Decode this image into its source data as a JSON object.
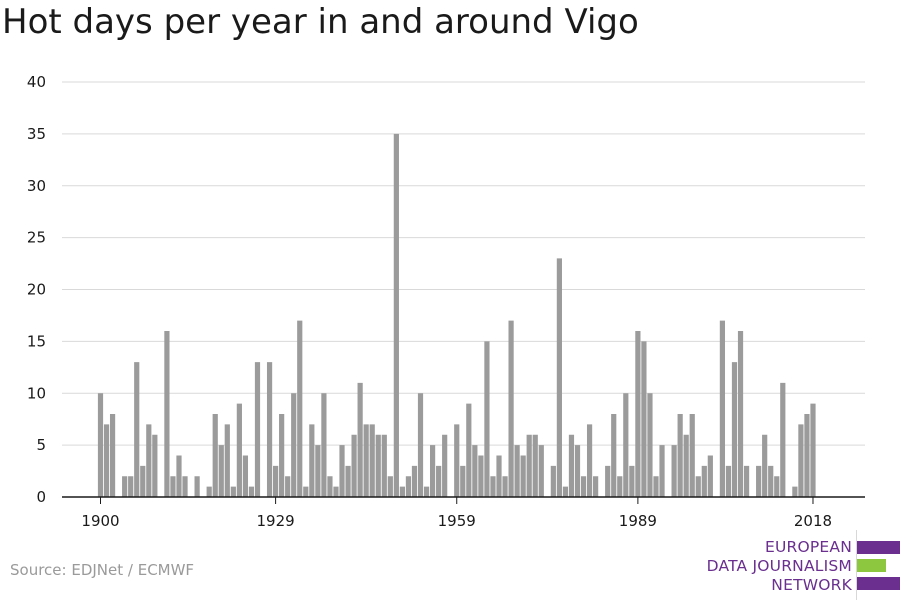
{
  "title": "Hot days per year in and around Vigo",
  "source": "Source: EDJNet / ECMWF",
  "logo": {
    "line1": "EUROPEAN",
    "line2": "DATA JOURNALISM",
    "line3": "NETWORK",
    "colors": {
      "purple": "#6a2f8f",
      "green": "#8dc63f"
    }
  },
  "chart_data": {
    "type": "bar",
    "title": "Hot days per year in and around Vigo",
    "xlabel": "",
    "ylabel": "",
    "ylim": [
      0,
      40
    ],
    "yticks": [
      0,
      5,
      10,
      15,
      20,
      25,
      30,
      35,
      40
    ],
    "xtick_labels": [
      "1900",
      "1929",
      "1959",
      "1989",
      "2018"
    ],
    "grid": true,
    "bar_color": "#9b9b9b",
    "categories": [
      1900,
      1901,
      1902,
      1903,
      1904,
      1905,
      1906,
      1907,
      1908,
      1909,
      1910,
      1911,
      1912,
      1913,
      1914,
      1915,
      1916,
      1917,
      1918,
      1919,
      1920,
      1921,
      1922,
      1923,
      1924,
      1925,
      1926,
      1927,
      1928,
      1929,
      1930,
      1931,
      1932,
      1933,
      1934,
      1935,
      1936,
      1937,
      1938,
      1939,
      1940,
      1941,
      1942,
      1943,
      1944,
      1945,
      1946,
      1947,
      1948,
      1949,
      1950,
      1951,
      1952,
      1953,
      1954,
      1955,
      1956,
      1957,
      1958,
      1959,
      1960,
      1961,
      1962,
      1963,
      1964,
      1965,
      1966,
      1967,
      1968,
      1969,
      1970,
      1971,
      1972,
      1973,
      1974,
      1975,
      1976,
      1977,
      1978,
      1979,
      1980,
      1981,
      1982,
      1983,
      1984,
      1985,
      1986,
      1987,
      1988,
      1989,
      1990,
      1991,
      1992,
      1993,
      1994,
      1995,
      1996,
      1997,
      1998,
      1999,
      2000,
      2001,
      2002,
      2003,
      2004,
      2005,
      2006,
      2007,
      2008,
      2009,
      2010,
      2011,
      2012,
      2013,
      2014,
      2015,
      2016,
      2017,
      2018
    ],
    "values": [
      10,
      7,
      8,
      0,
      2,
      2,
      13,
      3,
      7,
      6,
      0,
      16,
      2,
      4,
      2,
      0,
      2,
      0,
      1,
      8,
      5,
      7,
      1,
      9,
      4,
      1,
      13,
      0,
      13,
      3,
      8,
      2,
      10,
      17,
      1,
      7,
      5,
      10,
      2,
      1,
      5,
      3,
      6,
      11,
      7,
      7,
      6,
      6,
      2,
      35,
      1,
      2,
      3,
      10,
      1,
      5,
      3,
      6,
      0,
      7,
      3,
      9,
      5,
      4,
      15,
      2,
      4,
      2,
      17,
      5,
      4,
      6,
      6,
      5,
      0,
      3,
      23,
      1,
      6,
      5,
      2,
      7,
      2,
      0,
      3,
      8,
      2,
      10,
      3,
      16,
      15,
      10,
      2,
      5,
      0,
      5,
      8,
      6,
      8,
      2,
      3,
      4,
      0,
      17,
      3,
      13,
      16,
      3,
      0,
      3,
      6,
      3,
      2,
      11,
      0,
      1,
      7,
      8,
      9
    ]
  }
}
